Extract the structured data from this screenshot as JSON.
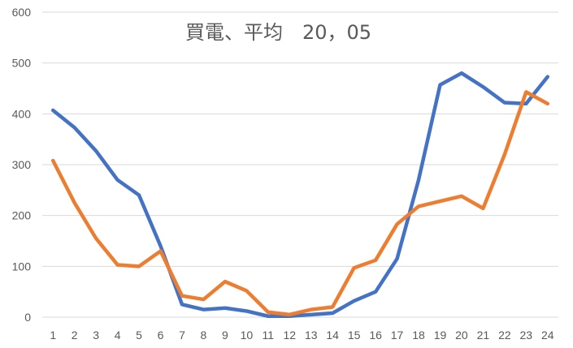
{
  "chart_data": {
    "type": "line",
    "title": "買電、平均　20，05",
    "x": [
      "1",
      "2",
      "3",
      "4",
      "5",
      "6",
      "7",
      "8",
      "9",
      "10",
      "11",
      "12",
      "13",
      "14",
      "15",
      "16",
      "17",
      "18",
      "19",
      "20",
      "21",
      "22",
      "23",
      "24"
    ],
    "ylim": [
      0,
      600
    ],
    "yticks": [
      0,
      100,
      200,
      300,
      400,
      500,
      600
    ],
    "grid": true,
    "series": [
      {
        "color": "#4472C4",
        "values": [
          407,
          373,
          327,
          270,
          240,
          140,
          25,
          15,
          18,
          12,
          2,
          2,
          5,
          8,
          32,
          50,
          115,
          270,
          457,
          480,
          453,
          422,
          420,
          473
        ]
      },
      {
        "color": "#ED7D31",
        "values": [
          308,
          225,
          155,
          103,
          100,
          130,
          42,
          35,
          70,
          52,
          10,
          5,
          15,
          20,
          97,
          112,
          183,
          218,
          228,
          238,
          214,
          320,
          443,
          420
        ]
      }
    ]
  }
}
